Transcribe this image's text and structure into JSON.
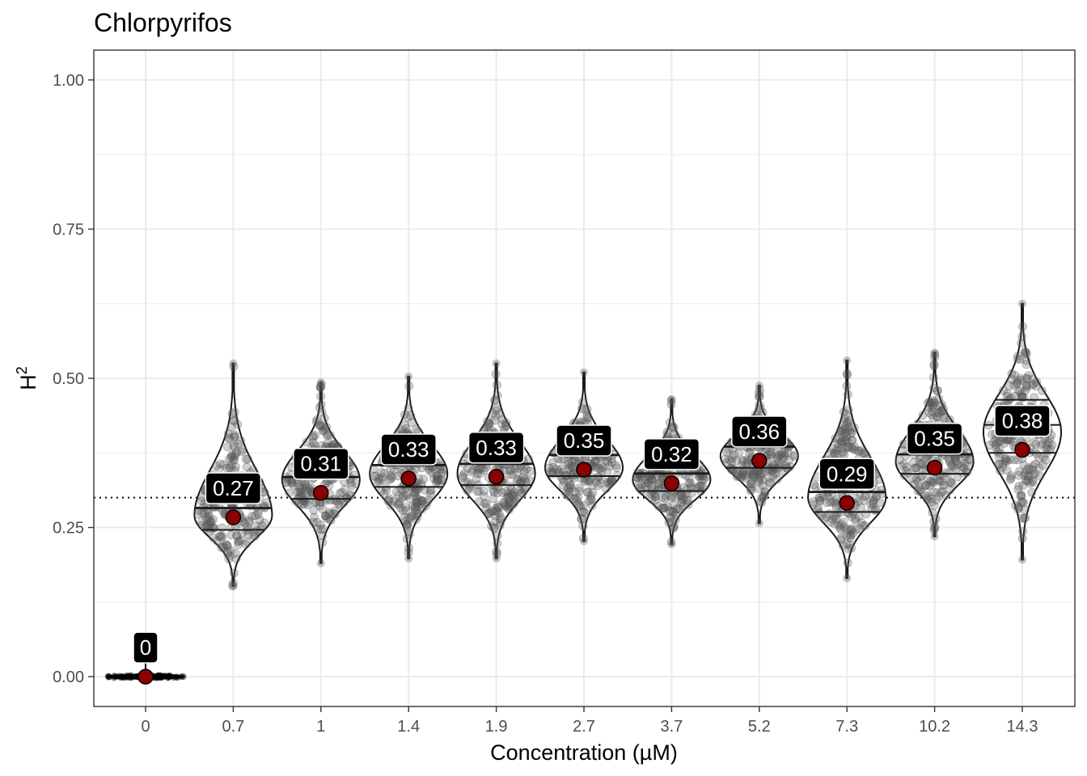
{
  "chart_data": {
    "type": "violin",
    "title": "Chlorpyrifos",
    "xlabel": "Concentration (µM)",
    "ylabel": "H",
    "ylabel_superscript": "2",
    "ylim": [
      -0.05,
      1.05
    ],
    "yticks": [
      0.0,
      0.25,
      0.5,
      0.75,
      1.0
    ],
    "ytick_labels": [
      "0.00",
      "0.25",
      "0.50",
      "0.75",
      "1.00"
    ],
    "reference_line": {
      "y": 0.3,
      "style": "dotted"
    },
    "grid": true,
    "categories": [
      "0",
      "0.7",
      "1",
      "1.4",
      "1.9",
      "2.7",
      "3.7",
      "5.2",
      "7.3",
      "10.2",
      "14.3"
    ],
    "series": [
      {
        "mean": [
          0.0,
          0.267,
          0.308,
          0.332,
          0.335,
          0.347,
          0.324,
          0.362,
          0.291,
          0.35,
          0.38
        ],
        "mean_labels": [
          "0",
          "0.27",
          "0.31",
          "0.33",
          "0.33",
          "0.35",
          "0.32",
          "0.36",
          "0.29",
          "0.35",
          "0.38"
        ],
        "median": [
          0.0,
          0.282,
          0.334,
          0.354,
          0.356,
          0.371,
          0.34,
          0.385,
          0.309,
          0.372,
          0.422
        ],
        "q1": [
          0.0,
          0.246,
          0.298,
          0.318,
          0.321,
          0.336,
          0.311,
          0.35,
          0.276,
          0.34,
          0.375
        ],
        "q3": [
          0.0,
          0.283,
          0.335,
          0.355,
          0.357,
          0.372,
          0.341,
          0.386,
          0.31,
          0.373,
          0.464
        ],
        "min": [
          0.0,
          0.152,
          0.19,
          0.198,
          0.198,
          0.227,
          0.222,
          0.257,
          0.165,
          0.235,
          0.196
        ],
        "max": [
          0.0,
          0.525,
          0.493,
          0.503,
          0.525,
          0.51,
          0.465,
          0.488,
          0.53,
          0.543,
          0.625
        ],
        "mode": [
          0.0,
          0.27,
          0.33,
          0.34,
          0.34,
          0.35,
          0.33,
          0.37,
          0.3,
          0.36,
          0.41
        ]
      }
    ],
    "colors": {
      "mean_point": "#8b0000",
      "jitter_point": "#555555",
      "violin_outline": "#1a1a1a",
      "label_fill": "#000000",
      "label_text": "#ffffff",
      "grid": "#ebebeb"
    }
  }
}
